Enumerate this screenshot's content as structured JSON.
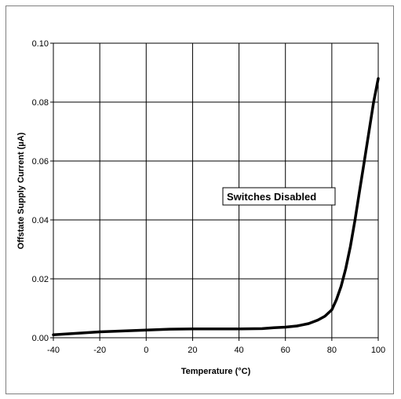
{
  "chart_data": {
    "type": "line",
    "title": "",
    "xlabel": "Temperature (°C)",
    "ylabel": "Offstate Supply Current (µA)",
    "xlim": [
      -40,
      100
    ],
    "ylim": [
      0,
      0.1
    ],
    "x_ticks": [
      "-40",
      "-20",
      "0",
      "20",
      "40",
      "60",
      "80",
      "100"
    ],
    "y_ticks": [
      "0.00",
      "0.02",
      "0.04",
      "0.06",
      "0.08",
      "0.10"
    ],
    "grid": true,
    "legend": "none",
    "annotation": "Switches Disabled",
    "line_color": "#000000",
    "series": [
      {
        "x": [
          -40,
          -30,
          -20,
          -10,
          0,
          10,
          20,
          30,
          40,
          50,
          55,
          60,
          65,
          70,
          74,
          77,
          80,
          82,
          84,
          86,
          88,
          90,
          92,
          94,
          96,
          98,
          100
        ],
        "y": [
          0.001,
          0.0015,
          0.002,
          0.0023,
          0.0026,
          0.0029,
          0.003,
          0.003,
          0.003,
          0.0031,
          0.0034,
          0.0036,
          0.004,
          0.0048,
          0.006,
          0.0073,
          0.0095,
          0.013,
          0.0175,
          0.0235,
          0.031,
          0.04,
          0.05,
          0.06,
          0.07,
          0.08,
          0.088
        ]
      }
    ]
  }
}
